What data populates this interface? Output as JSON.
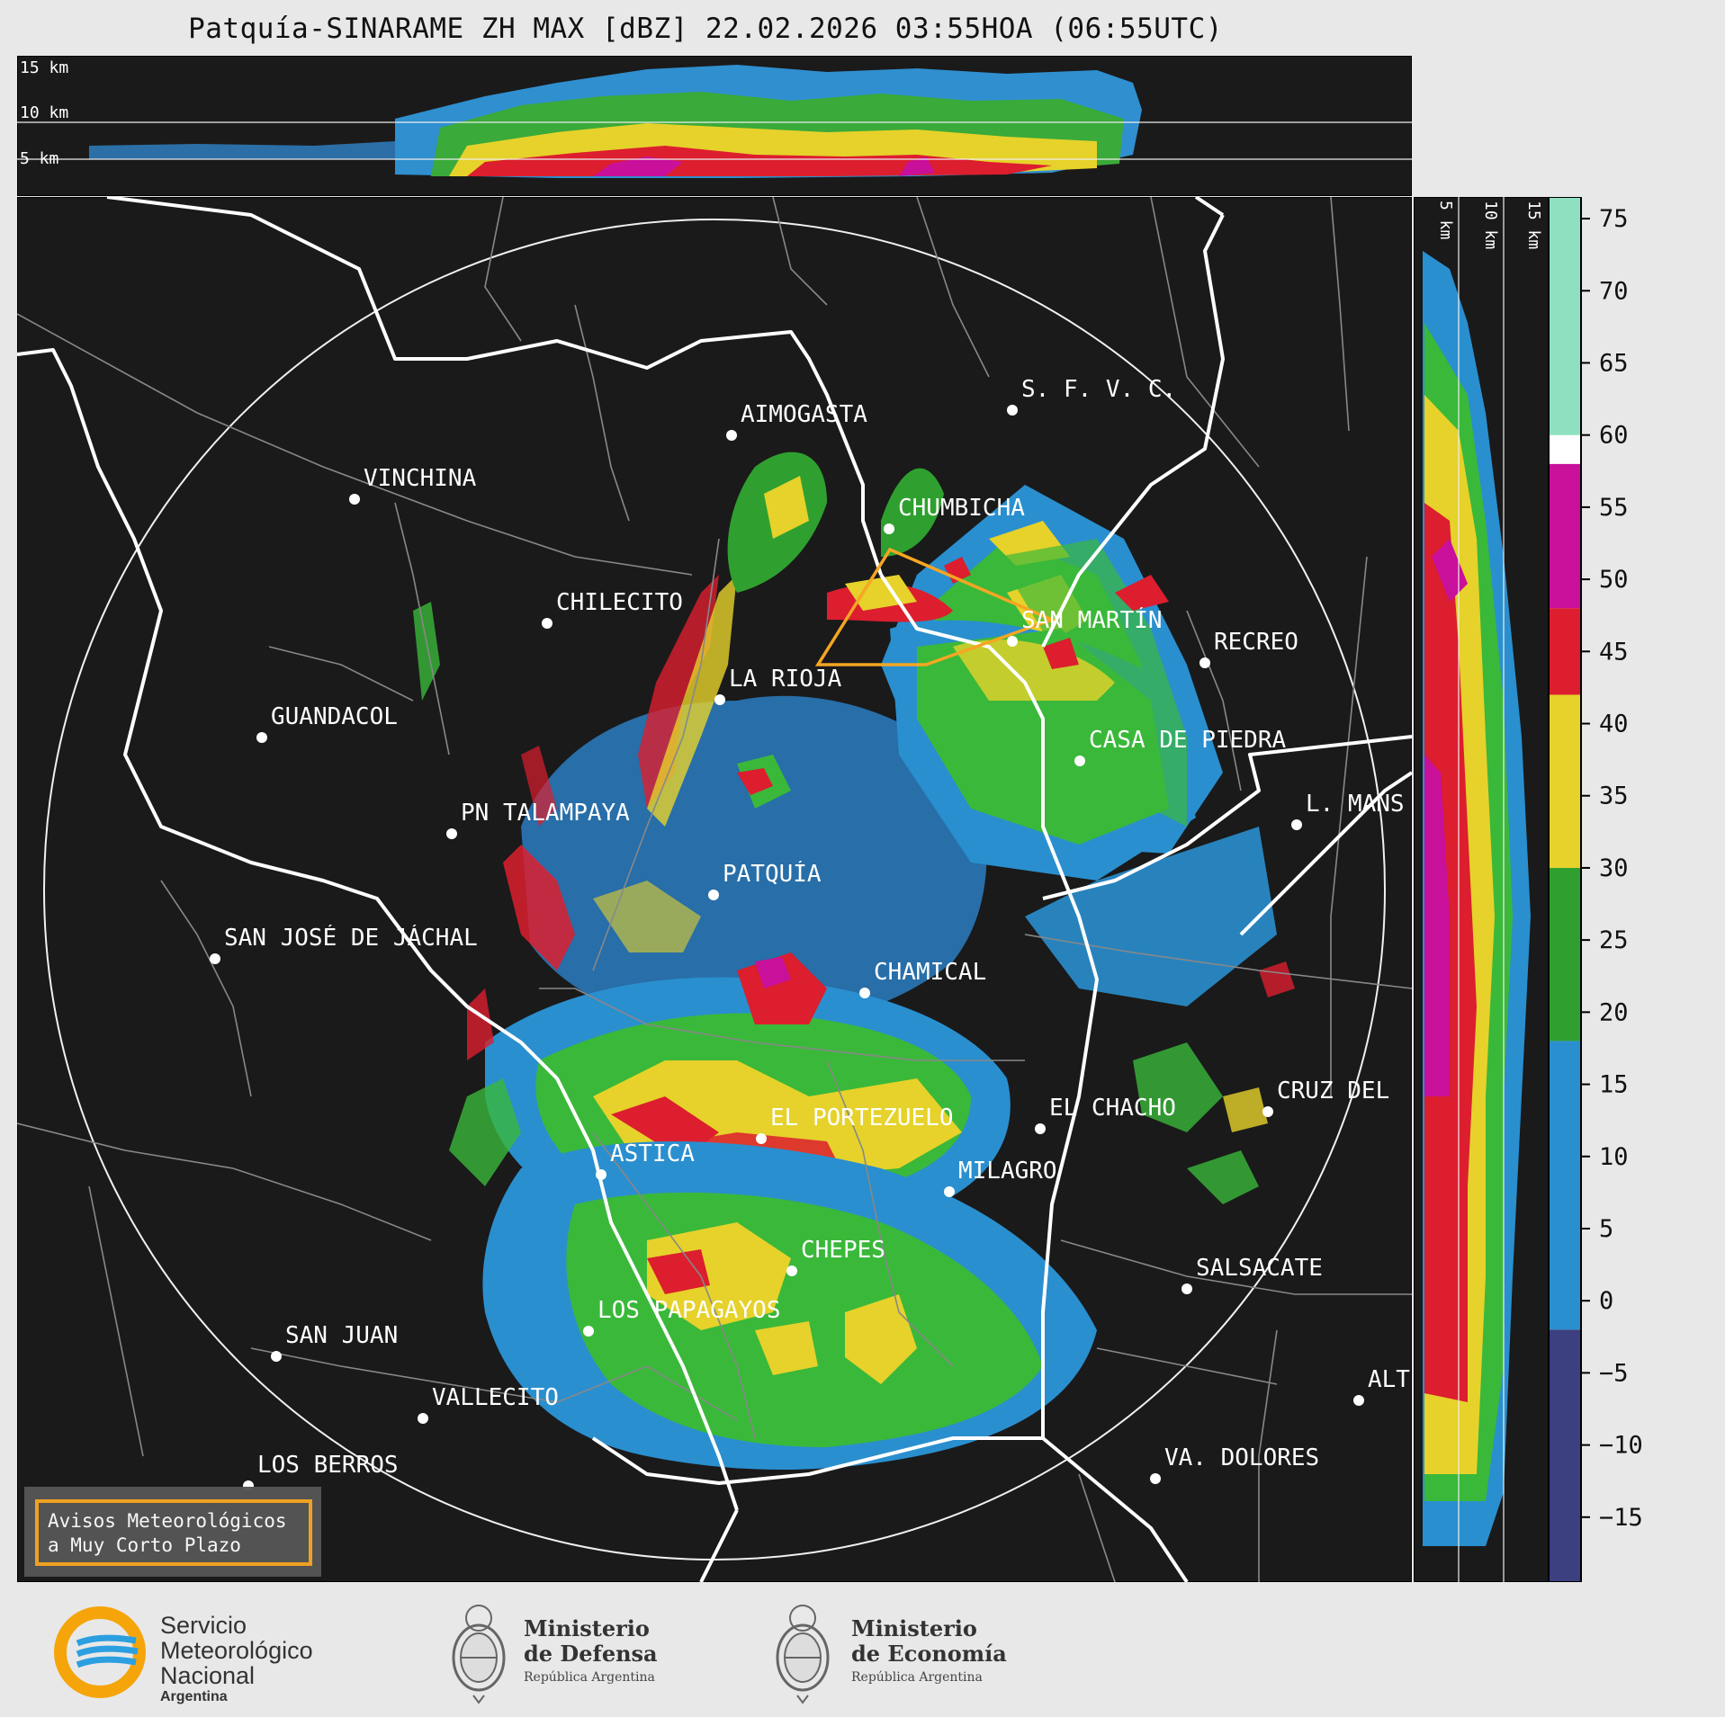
{
  "title": "Patquía-SINARAME ZH MAX [dBZ] 22.02.2026 03:55HOA (06:55UTC)",
  "top_panel": {
    "altitude_labels": [
      "15 km",
      "10 km",
      "5 km"
    ]
  },
  "side_panel": {
    "altitude_labels": [
      "5 km",
      "10 km",
      "15 km"
    ]
  },
  "colorbar": {
    "unit": "dBZ",
    "ticks": [
      75,
      70,
      65,
      60,
      55,
      50,
      45,
      40,
      35,
      30,
      25,
      20,
      15,
      10,
      5,
      0,
      -5,
      -10,
      -15
    ],
    "tick_labels": [
      "75",
      "70",
      "65",
      "60",
      "55",
      "50",
      "45",
      "40",
      "35",
      "30",
      "25",
      "20",
      "15",
      "10",
      "5",
      "0",
      "−5",
      "−10",
      "−15"
    ],
    "range": [
      -19.5,
      76.5
    ],
    "stops": [
      {
        "from": -19.5,
        "to": -2,
        "color": "#3c3f80"
      },
      {
        "from": -2,
        "to": 18,
        "color": "#2a8fcf"
      },
      {
        "from": 18,
        "to": 30,
        "color": "#2fa02f"
      },
      {
        "from": 30,
        "to": 42,
        "color": "#e6d22a"
      },
      {
        "from": 42,
        "to": 48,
        "color": "#dc1e2e"
      },
      {
        "from": 48,
        "to": 58,
        "color": "#c8109a"
      },
      {
        "from": 58,
        "to": 60,
        "color": "#ffffff"
      },
      {
        "from": 60,
        "to": 76.5,
        "color": "#8fe0c0"
      }
    ]
  },
  "cities": [
    {
      "name": "AIMOGASTA",
      "pos": "map"
    },
    {
      "name": "S. F. V. C.",
      "pos": "map"
    },
    {
      "name": "VINCHINA",
      "pos": "map"
    },
    {
      "name": "CHUMBICHA",
      "pos": "map"
    },
    {
      "name": "CHILECITO",
      "pos": "map"
    },
    {
      "name": "SAN MARTÍN",
      "pos": "map"
    },
    {
      "name": "RECREO",
      "pos": "map"
    },
    {
      "name": "LA RIOJA",
      "pos": "map"
    },
    {
      "name": "GUANDACOL",
      "pos": "map"
    },
    {
      "name": "CASA DE PIEDRA",
      "pos": "map"
    },
    {
      "name": "L. MANS",
      "pos": "map"
    },
    {
      "name": "PN TALAMPAYA",
      "pos": "map"
    },
    {
      "name": "PATQUÍA",
      "pos": "map"
    },
    {
      "name": "SAN JOSÉ DE JÁCHAL",
      "pos": "map"
    },
    {
      "name": "CHAMICAL",
      "pos": "map"
    },
    {
      "name": "CRUZ DEL",
      "pos": "map"
    },
    {
      "name": "EL CHACHO",
      "pos": "map"
    },
    {
      "name": "EL PORTEZUELO",
      "pos": "map"
    },
    {
      "name": "ASTICA",
      "pos": "map"
    },
    {
      "name": "MILAGRO",
      "pos": "map"
    },
    {
      "name": "CHEPES",
      "pos": "map"
    },
    {
      "name": "SALSACATE",
      "pos": "map"
    },
    {
      "name": "LOS PAPAGAYOS",
      "pos": "map"
    },
    {
      "name": "SAN JUAN",
      "pos": "map"
    },
    {
      "name": "ALT",
      "pos": "map"
    },
    {
      "name": "VALLECITO",
      "pos": "map"
    },
    {
      "name": "VA. DOLORES",
      "pos": "map"
    },
    {
      "name": "LOS BERROS",
      "pos": "map"
    }
  ],
  "legend_box": {
    "line1": "Avisos Meteorológicos",
    "line2": "a Muy Corto Plazo",
    "border_color": "#f5a623"
  },
  "warning_polygon_color": "#f5a623",
  "footer": {
    "smn": {
      "line1": "Servicio",
      "line2": "Meteorológico",
      "line3": "Nacional",
      "line4": "Argentina"
    },
    "defensa": {
      "line1": "Ministerio",
      "line2": "de Defensa",
      "line3": "República Argentina"
    },
    "economia": {
      "line1": "Ministerio",
      "line2": "de Economía",
      "line3": "República Argentina"
    }
  }
}
